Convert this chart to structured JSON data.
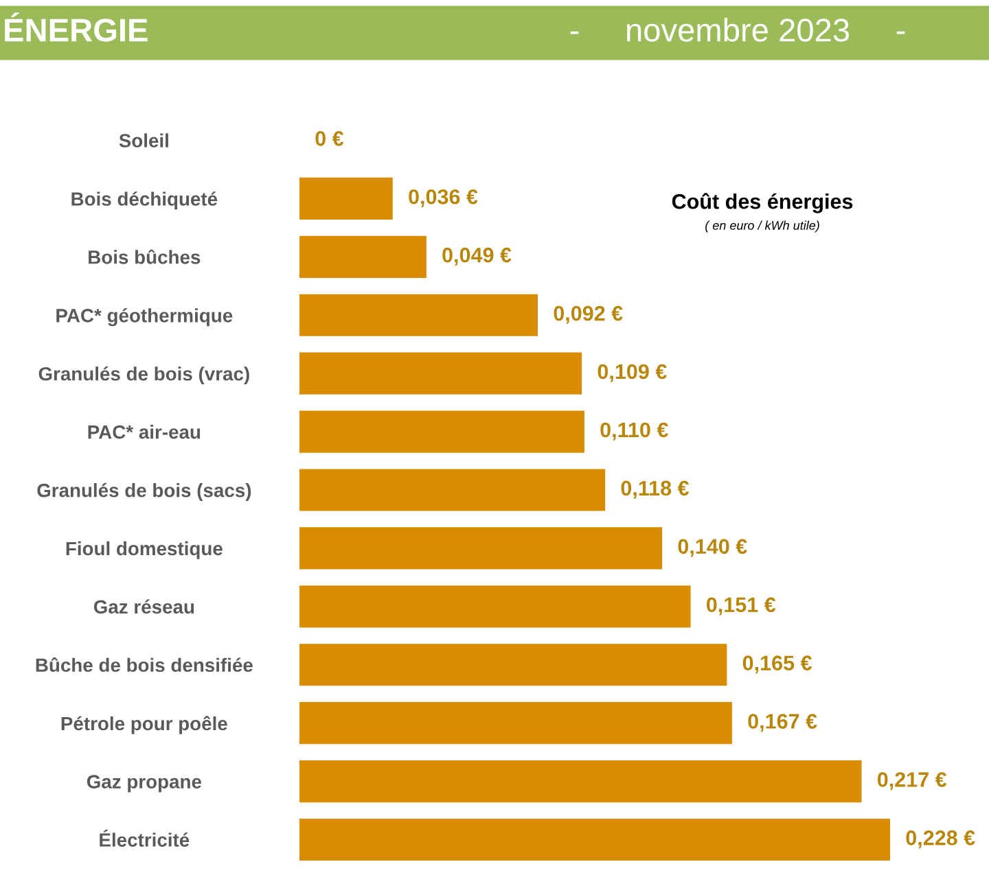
{
  "chart_data": {
    "type": "bar",
    "orientation": "horizontal",
    "title": "Coût des énergies",
    "subtitle": "( en euro / kWh utile)",
    "annotations": [
      "ÉNERGIE",
      "-     novembre 2023     -"
    ],
    "categories": [
      "Soleil",
      "Bois déchiqueté",
      "Bois bûches",
      "PAC* géothermique",
      "Granulés de bois (vrac)",
      "PAC* air-eau",
      "Granulés de bois (sacs)",
      "Fioul domestique",
      "Gaz réseau",
      "Bûche de bois densifiée",
      "Pétrole pour poêle",
      "Gaz propane",
      "Électricité"
    ],
    "values": [
      0,
      0.036,
      0.049,
      0.092,
      0.109,
      0.11,
      0.118,
      0.14,
      0.151,
      0.165,
      0.167,
      0.217,
      0.228
    ],
    "value_labels": [
      "0 €",
      "0,036 €",
      "0,049 €",
      "0,092 €",
      "0,109 €",
      "0,110 €",
      "0,118 €",
      "0,140 €",
      "0,151 €",
      "0,165 €",
      "0,167 €",
      "0,217 €",
      "0,228 €"
    ],
    "color": "#d98c00",
    "grid": false,
    "legend": false
  }
}
